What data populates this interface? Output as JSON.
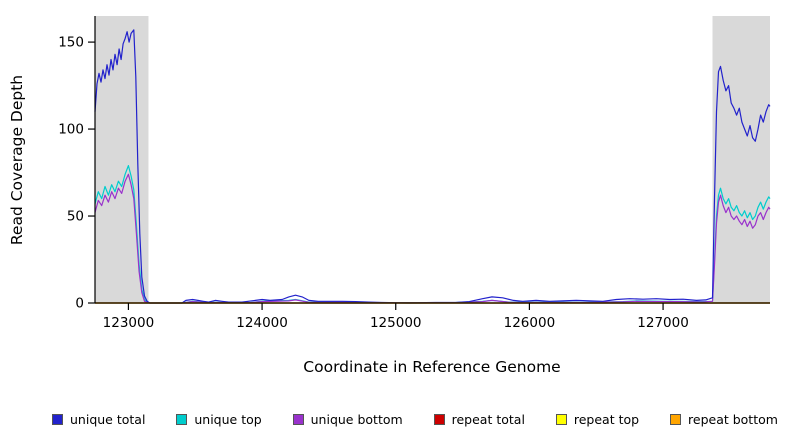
{
  "figure": {
    "background": "#ffffff"
  },
  "chart_data": {
    "type": "line",
    "title": "",
    "xlabel": "Coordinate in Reference Genome",
    "ylabel": "Read Coverage Depth",
    "xlim": [
      122750,
      127800
    ],
    "ylim": [
      0,
      165
    ],
    "x_ticks": [
      123000,
      124000,
      125000,
      126000,
      127000
    ],
    "y_ticks": [
      0,
      50,
      100,
      150
    ],
    "grid": false,
    "legend_position": "bottom",
    "highlight_color": "#d9d9d9",
    "highlight_regions": [
      [
        122750,
        123150
      ],
      [
        127370,
        127800
      ]
    ],
    "series": [
      {
        "name": "unique total",
        "color": "#2222CC",
        "z": 3,
        "points": [
          [
            122750,
            110
          ],
          [
            122765,
            126
          ],
          [
            122780,
            132
          ],
          [
            122795,
            127
          ],
          [
            122810,
            134
          ],
          [
            122825,
            129
          ],
          [
            122840,
            137
          ],
          [
            122855,
            131
          ],
          [
            122870,
            140
          ],
          [
            122885,
            134
          ],
          [
            122900,
            143
          ],
          [
            122915,
            137
          ],
          [
            122930,
            146
          ],
          [
            122945,
            140
          ],
          [
            122960,
            149
          ],
          [
            122975,
            152
          ],
          [
            122990,
            156
          ],
          [
            123005,
            150
          ],
          [
            123020,
            155
          ],
          [
            123040,
            157
          ],
          [
            123055,
            130
          ],
          [
            123070,
            80
          ],
          [
            123085,
            40
          ],
          [
            123100,
            15
          ],
          [
            123120,
            4
          ],
          [
            123140,
            1
          ],
          [
            123160,
            0
          ],
          [
            123250,
            0
          ],
          [
            123400,
            0
          ],
          [
            123430,
            1.5
          ],
          [
            123480,
            2
          ],
          [
            123520,
            1.5
          ],
          [
            123560,
            1
          ],
          [
            123600,
            0.5
          ],
          [
            123650,
            1.5
          ],
          [
            123700,
            1
          ],
          [
            123750,
            0.5
          ],
          [
            123850,
            0.5
          ],
          [
            123950,
            1.5
          ],
          [
            124000,
            2
          ],
          [
            124060,
            1.5
          ],
          [
            124150,
            2
          ],
          [
            124200,
            3.5
          ],
          [
            124250,
            4.5
          ],
          [
            124300,
            3.5
          ],
          [
            124350,
            1.5
          ],
          [
            124420,
            1
          ],
          [
            124500,
            1
          ],
          [
            124600,
            1
          ],
          [
            124700,
            0.8
          ],
          [
            124800,
            0.5
          ],
          [
            124900,
            0.3
          ],
          [
            125000,
            0.2
          ],
          [
            125150,
            0.2
          ],
          [
            125300,
            0.3
          ],
          [
            125450,
            0.3
          ],
          [
            125550,
            0.8
          ],
          [
            125650,
            2.5
          ],
          [
            125720,
            3.5
          ],
          [
            125800,
            3
          ],
          [
            125880,
            1.5
          ],
          [
            125950,
            1
          ],
          [
            126050,
            1.5
          ],
          [
            126150,
            1
          ],
          [
            126250,
            1.2
          ],
          [
            126350,
            1.5
          ],
          [
            126450,
            1.2
          ],
          [
            126550,
            1
          ],
          [
            126650,
            2
          ],
          [
            126750,
            2.5
          ],
          [
            126850,
            2.2
          ],
          [
            126950,
            2.5
          ],
          [
            127050,
            2
          ],
          [
            127150,
            2.2
          ],
          [
            127250,
            1.5
          ],
          [
            127320,
            1.8
          ],
          [
            127370,
            3
          ],
          [
            127385,
            60
          ],
          [
            127400,
            110
          ],
          [
            127415,
            133
          ],
          [
            127430,
            136
          ],
          [
            127450,
            128
          ],
          [
            127470,
            122
          ],
          [
            127490,
            125
          ],
          [
            127510,
            115
          ],
          [
            127530,
            112
          ],
          [
            127550,
            108
          ],
          [
            127570,
            112
          ],
          [
            127590,
            104
          ],
          [
            127610,
            100
          ],
          [
            127630,
            96
          ],
          [
            127650,
            102
          ],
          [
            127670,
            95
          ],
          [
            127690,
            93
          ],
          [
            127710,
            100
          ],
          [
            127730,
            108
          ],
          [
            127750,
            104
          ],
          [
            127770,
            110
          ],
          [
            127790,
            114
          ],
          [
            127800,
            113
          ]
        ]
      },
      {
        "name": "unique top",
        "color": "#00CDCD",
        "z": 1,
        "points": [
          [
            122750,
            57
          ],
          [
            122775,
            64
          ],
          [
            122800,
            60
          ],
          [
            122825,
            67
          ],
          [
            122850,
            62
          ],
          [
            122875,
            68
          ],
          [
            122900,
            64
          ],
          [
            122925,
            70
          ],
          [
            122950,
            67
          ],
          [
            122975,
            74
          ],
          [
            123000,
            79
          ],
          [
            123020,
            73
          ],
          [
            123040,
            65
          ],
          [
            123060,
            45
          ],
          [
            123080,
            22
          ],
          [
            123100,
            8
          ],
          [
            123120,
            2
          ],
          [
            123140,
            0.5
          ],
          [
            123160,
            0
          ],
          [
            123400,
            0
          ],
          [
            123480,
            1
          ],
          [
            123560,
            0.5
          ],
          [
            123700,
            0.3
          ],
          [
            123900,
            0.2
          ],
          [
            124000,
            1
          ],
          [
            124200,
            1.5
          ],
          [
            124250,
            2
          ],
          [
            124350,
            0.5
          ],
          [
            124600,
            0.5
          ],
          [
            124900,
            0.1
          ],
          [
            125100,
            0
          ],
          [
            125400,
            0.1
          ],
          [
            125650,
            1
          ],
          [
            125720,
            1.5
          ],
          [
            125850,
            0.5
          ],
          [
            126100,
            0.5
          ],
          [
            126400,
            0.4
          ],
          [
            126700,
            0.8
          ],
          [
            126800,
            1.2
          ],
          [
            127000,
            1
          ],
          [
            127100,
            1
          ],
          [
            127300,
            0.8
          ],
          [
            127370,
            1
          ],
          [
            127385,
            25
          ],
          [
            127400,
            50
          ],
          [
            127415,
            62
          ],
          [
            127430,
            66
          ],
          [
            127450,
            60
          ],
          [
            127470,
            57
          ],
          [
            127490,
            60
          ],
          [
            127510,
            55
          ],
          [
            127530,
            53
          ],
          [
            127550,
            56
          ],
          [
            127570,
            52
          ],
          [
            127590,
            50
          ],
          [
            127610,
            53
          ],
          [
            127630,
            49
          ],
          [
            127650,
            52
          ],
          [
            127670,
            48
          ],
          [
            127690,
            50
          ],
          [
            127710,
            55
          ],
          [
            127730,
            58
          ],
          [
            127750,
            54
          ],
          [
            127770,
            58
          ],
          [
            127790,
            61
          ],
          [
            127800,
            60
          ]
        ]
      },
      {
        "name": "unique bottom",
        "color": "#9932CC",
        "z": 2,
        "points": [
          [
            122750,
            52
          ],
          [
            122775,
            59
          ],
          [
            122800,
            56
          ],
          [
            122825,
            62
          ],
          [
            122850,
            58
          ],
          [
            122875,
            64
          ],
          [
            122900,
            60
          ],
          [
            122925,
            66
          ],
          [
            122950,
            63
          ],
          [
            122975,
            70
          ],
          [
            123000,
            74
          ],
          [
            123020,
            68
          ],
          [
            123040,
            60
          ],
          [
            123060,
            40
          ],
          [
            123080,
            18
          ],
          [
            123100,
            6
          ],
          [
            123120,
            1
          ],
          [
            123140,
            0.3
          ],
          [
            123160,
            0
          ],
          [
            123400,
            0
          ],
          [
            123480,
            0.8
          ],
          [
            123560,
            0.4
          ],
          [
            123700,
            0.3
          ],
          [
            123900,
            0.2
          ],
          [
            124000,
            0.8
          ],
          [
            124200,
            1.2
          ],
          [
            124250,
            1.8
          ],
          [
            124350,
            0.4
          ],
          [
            124600,
            0.5
          ],
          [
            124900,
            0.1
          ],
          [
            125100,
            0
          ],
          [
            125400,
            0.1
          ],
          [
            125650,
            0.8
          ],
          [
            125720,
            1.5
          ],
          [
            125850,
            0.4
          ],
          [
            126100,
            0.4
          ],
          [
            126400,
            0.3
          ],
          [
            126700,
            0.7
          ],
          [
            126800,
            1
          ],
          [
            127000,
            0.8
          ],
          [
            127100,
            0.8
          ],
          [
            127300,
            0.6
          ],
          [
            127370,
            1
          ],
          [
            127385,
            22
          ],
          [
            127400,
            46
          ],
          [
            127415,
            58
          ],
          [
            127430,
            62
          ],
          [
            127450,
            56
          ],
          [
            127470,
            52
          ],
          [
            127490,
            55
          ],
          [
            127510,
            50
          ],
          [
            127530,
            48
          ],
          [
            127550,
            50
          ],
          [
            127570,
            47
          ],
          [
            127590,
            45
          ],
          [
            127610,
            48
          ],
          [
            127630,
            44
          ],
          [
            127650,
            47
          ],
          [
            127670,
            43
          ],
          [
            127690,
            45
          ],
          [
            127710,
            50
          ],
          [
            127730,
            52
          ],
          [
            127750,
            48
          ],
          [
            127770,
            52
          ],
          [
            127790,
            55
          ],
          [
            127800,
            54
          ]
        ]
      },
      {
        "name": "repeat total",
        "color": "#CD0000",
        "z": 4,
        "points": [
          [
            122750,
            0
          ],
          [
            127800,
            0
          ]
        ]
      },
      {
        "name": "repeat top",
        "color": "#FFFF00",
        "z": 5,
        "points": [
          [
            122750,
            0
          ],
          [
            127800,
            0
          ]
        ]
      },
      {
        "name": "repeat bottom",
        "color": "#FFA500",
        "z": 6,
        "points": [
          [
            122750,
            0
          ],
          [
            127800,
            0
          ]
        ]
      }
    ]
  }
}
